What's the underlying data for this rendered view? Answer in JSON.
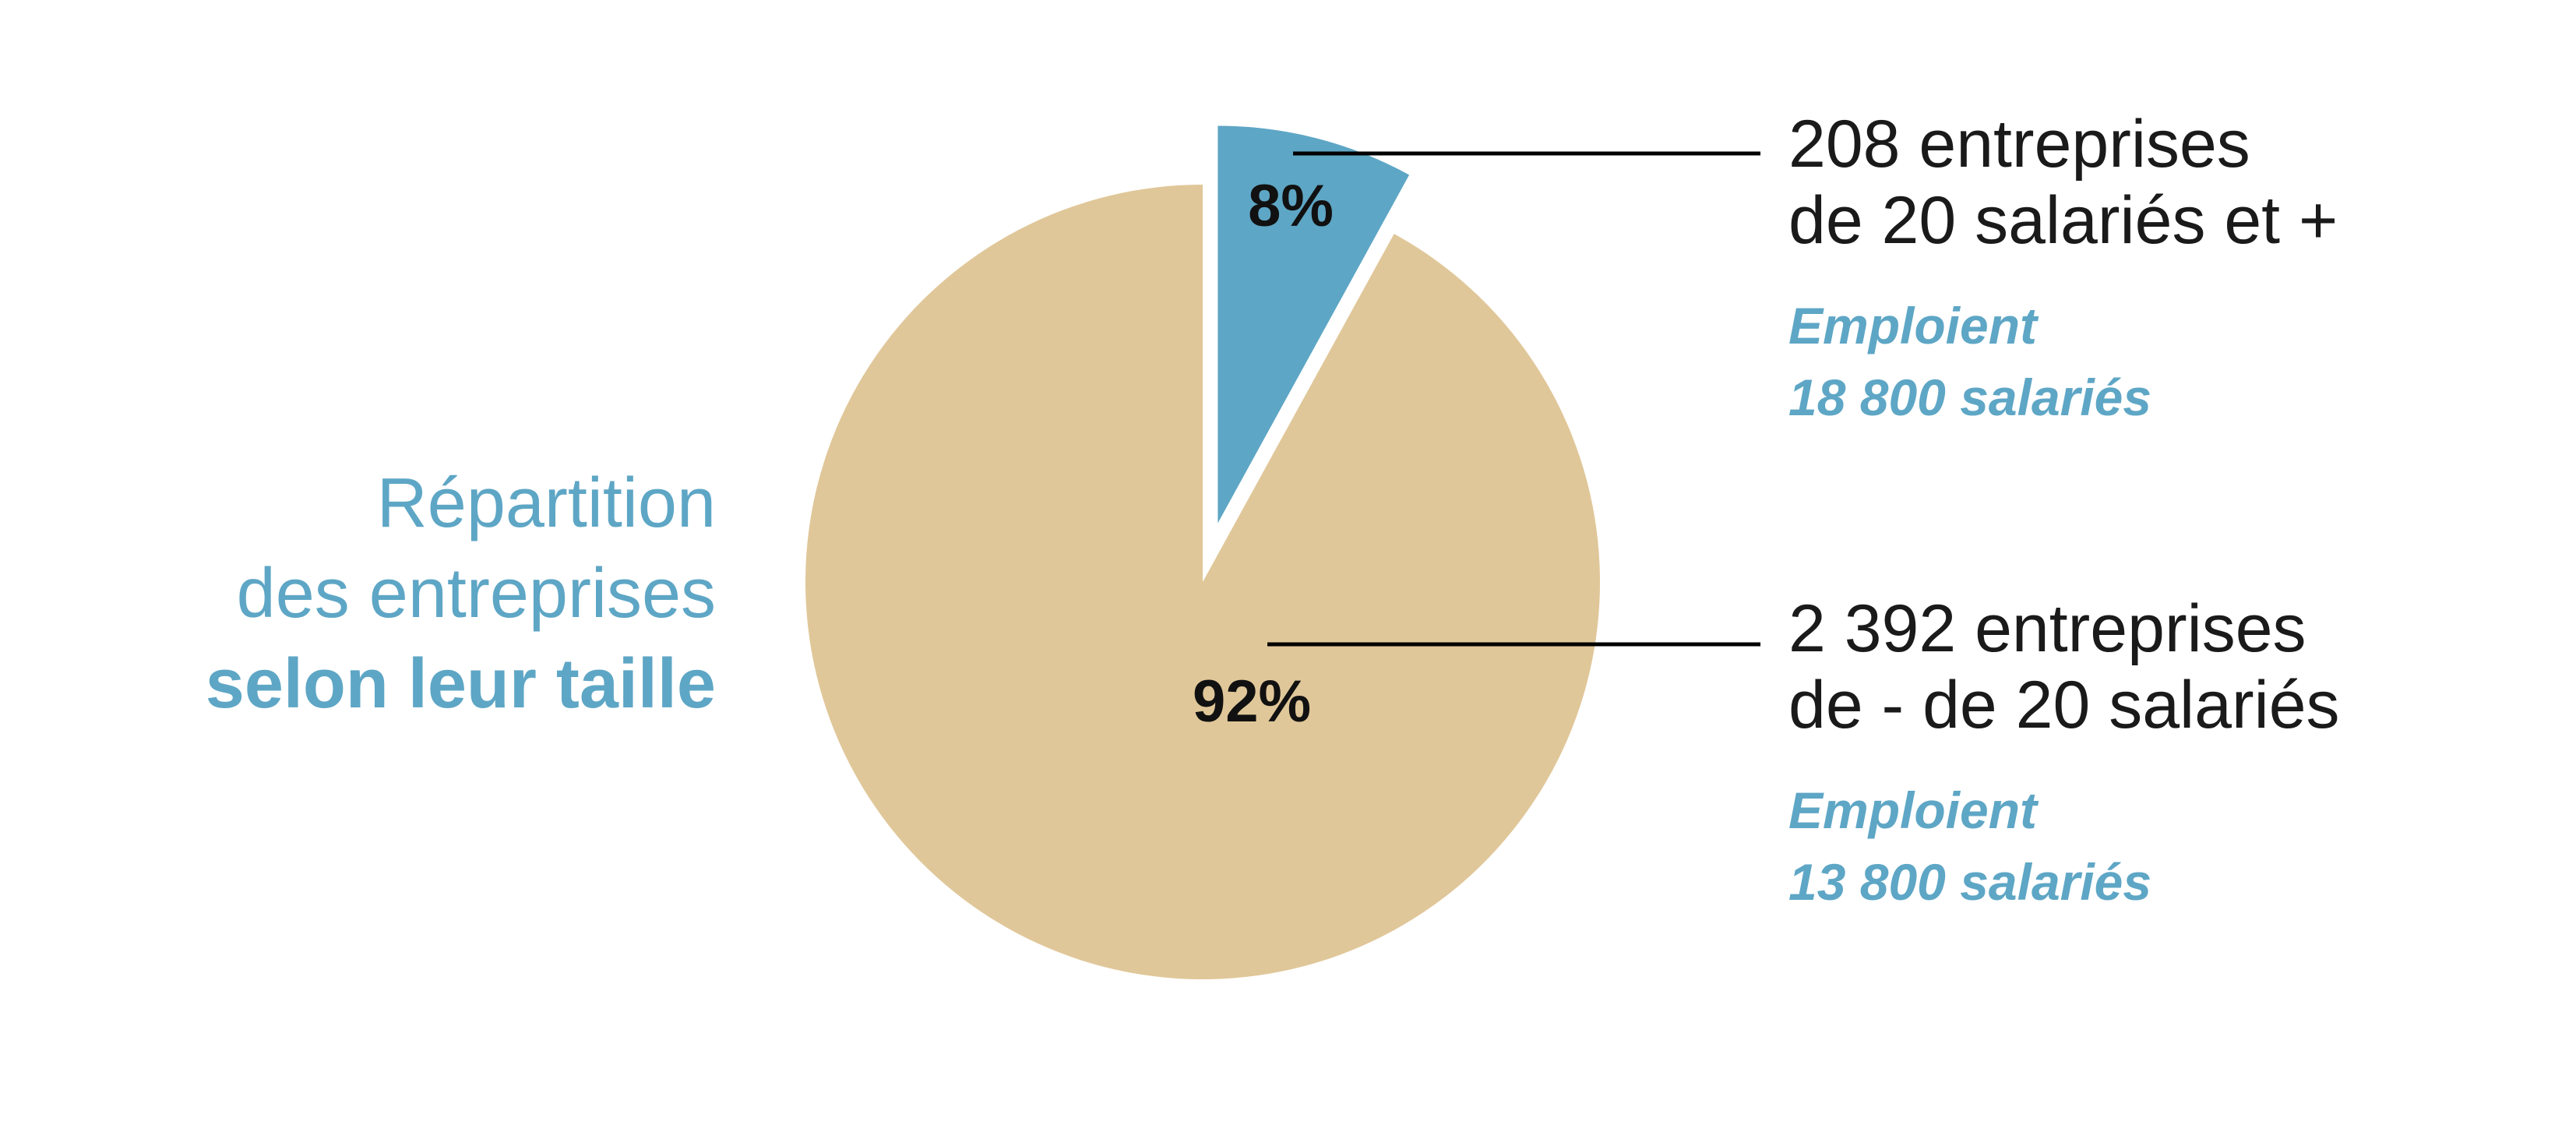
{
  "title": {
    "line1": "Répartition",
    "line2": "des entreprises",
    "line3": "selon leur taille"
  },
  "chart_data": {
    "type": "pie",
    "slices": [
      {
        "label": "8%",
        "value": 8,
        "color": "#5ea6c5",
        "exploded": true,
        "annotation": {
          "count_line1": "208 entreprises",
          "count_line2": "de 20 salariés et +",
          "employ_line1": "Emploient",
          "employ_line2": "18 800 salariés"
        }
      },
      {
        "label": "92%",
        "value": 92,
        "color": "#e0c799",
        "exploded": false,
        "annotation": {
          "count_line1": "2 392 entreprises",
          "count_line2": "de - de 20 salariés",
          "employ_line1": "Emploient",
          "employ_line2": "13 800 salariés"
        }
      }
    ]
  }
}
